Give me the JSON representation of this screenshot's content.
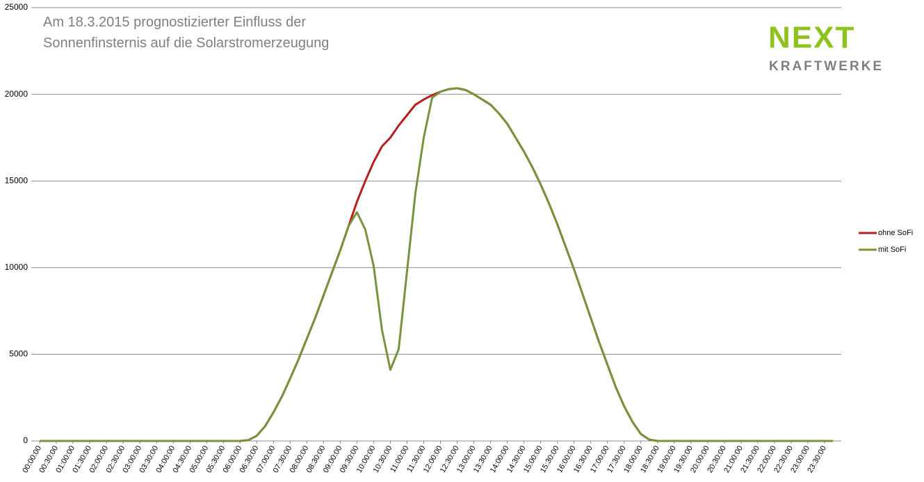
{
  "chart_data": {
    "type": "line",
    "title_lines": [
      "Am 18.3.2015 prognostizierter Einfluss der",
      "Sonnenfinsternis auf die Solarstromerzeugung"
    ],
    "categories": [
      "00:00:00",
      null,
      "00:30:00",
      null,
      "01:00:00",
      null,
      "01:30:00",
      null,
      "02:00:00",
      null,
      "02:30:00",
      null,
      "03:00:00",
      null,
      "03:30:00",
      null,
      "04:00:00",
      null,
      "04:30:00",
      null,
      "05:00:00",
      null,
      "05:30:00",
      null,
      "06:00:00",
      null,
      "06:30:00",
      null,
      "07:00:00",
      null,
      "07:30:00",
      null,
      "08:00:00",
      null,
      "08:30:00",
      null,
      "09:00:00",
      null,
      "09:30:00",
      null,
      "10:00:00",
      null,
      "10:30:00",
      null,
      "11:00:00",
      null,
      "11:30:00",
      null,
      "12:00:00",
      null,
      "12:30:00",
      null,
      "13:00:00",
      null,
      "13:30:00",
      null,
      "14:00:00",
      null,
      "14:30:00",
      null,
      "15:00:00",
      null,
      "15:30:00",
      null,
      "16:00:00",
      null,
      "16:30:00",
      null,
      "17:00:00",
      null,
      "17:30:00",
      null,
      "18:00:00",
      null,
      "18:30:00",
      null,
      "19:00:00",
      null,
      "19:30:00",
      null,
      "20:00:00",
      null,
      "20:30:00",
      null,
      "21:00:00",
      null,
      "21:30:00",
      null,
      "22:00:00",
      null,
      "22:30:00",
      null,
      "23:00:00",
      null,
      "23:30:00",
      null
    ],
    "series": [
      {
        "name": "ohne SoFi",
        "color": "#b81d1d",
        "values": [
          0,
          0,
          0,
          0,
          0,
          0,
          0,
          0,
          0,
          0,
          0,
          0,
          0,
          0,
          0,
          0,
          0,
          0,
          0,
          0,
          0,
          0,
          0,
          0,
          0,
          50,
          300,
          850,
          1650,
          2550,
          3600,
          4700,
          5900,
          7100,
          8400,
          9700,
          11000,
          12400,
          13800,
          15000,
          16100,
          17000,
          17500,
          18200,
          18800,
          19400,
          19700,
          19950,
          20150,
          20300,
          20350,
          20250,
          20000,
          19700,
          19400,
          18900,
          18300,
          17500,
          16700,
          15800,
          14800,
          13700,
          12500,
          11200,
          9900,
          8500,
          7100,
          5700,
          4400,
          3100,
          2000,
          1100,
          400,
          80,
          0,
          0,
          0,
          0,
          0,
          0,
          0,
          0,
          0,
          0,
          0,
          0,
          0,
          0,
          0,
          0,
          0,
          0,
          0,
          0,
          0,
          0
        ]
      },
      {
        "name": "mit SoFi",
        "color": "#77933c",
        "values": [
          0,
          0,
          0,
          0,
          0,
          0,
          0,
          0,
          0,
          0,
          0,
          0,
          0,
          0,
          0,
          0,
          0,
          0,
          0,
          0,
          0,
          0,
          0,
          0,
          0,
          50,
          300,
          850,
          1650,
          2550,
          3600,
          4700,
          5900,
          7100,
          8400,
          9700,
          11000,
          12400,
          13200,
          12200,
          10100,
          6400,
          4100,
          5300,
          9800,
          14300,
          17500,
          19800,
          20150,
          20300,
          20350,
          20250,
          20000,
          19700,
          19400,
          18900,
          18300,
          17500,
          16700,
          15800,
          14800,
          13700,
          12500,
          11200,
          9900,
          8500,
          7100,
          5700,
          4400,
          3100,
          2000,
          1100,
          400,
          80,
          0,
          0,
          0,
          0,
          0,
          0,
          0,
          0,
          0,
          0,
          0,
          0,
          0,
          0,
          0,
          0,
          0,
          0,
          0,
          0,
          0,
          0
        ]
      }
    ],
    "ylim": [
      0,
      25000
    ],
    "yticks": [
      0,
      5000,
      10000,
      15000,
      20000,
      25000
    ],
    "grid": true,
    "legend": "right"
  },
  "logo": {
    "name": "NEXT",
    "sub": "KRAFTWERKE"
  }
}
